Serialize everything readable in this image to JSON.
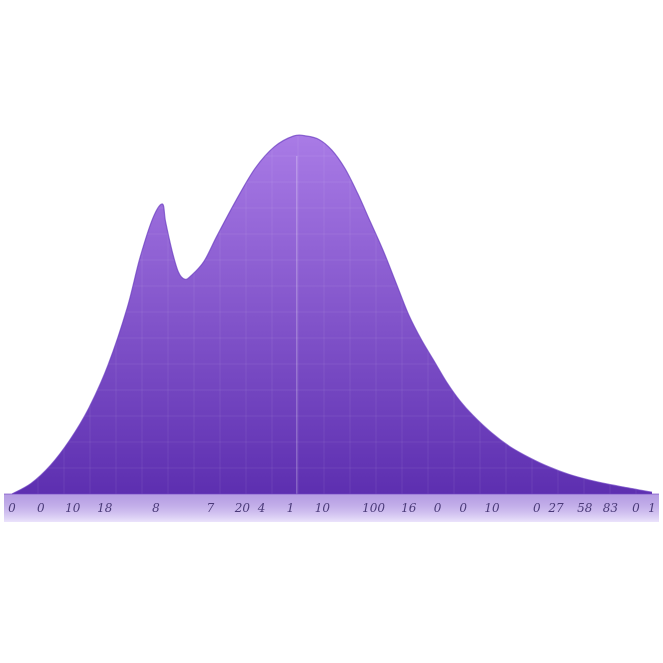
{
  "chart_data": {
    "type": "area",
    "title": "",
    "xlabel": "",
    "ylabel": "",
    "grid": true,
    "legend": "none",
    "colors": {
      "fill_top": "#a97be6",
      "fill_bottom": "#5d2fb0",
      "edge": "#6a3cc0",
      "axis_band": "#c9b5f0",
      "grid": "#ffffff",
      "tick_text": "#4a3a78"
    },
    "x_range": [
      0,
      100
    ],
    "y_range": [
      0,
      1
    ],
    "x": [
      0,
      3,
      6,
      9,
      12,
      15,
      18,
      20,
      22,
      23.5,
      24,
      25,
      26,
      27,
      28,
      30,
      32,
      35,
      38,
      41,
      44,
      46,
      48,
      50,
      52,
      54,
      56,
      58,
      60,
      62,
      64,
      66,
      68,
      70,
      72,
      75,
      78,
      81,
      84,
      87,
      90,
      93,
      96,
      99,
      100
    ],
    "y": [
      0.0,
      0.03,
      0.08,
      0.15,
      0.24,
      0.36,
      0.52,
      0.66,
      0.77,
      0.81,
      0.76,
      0.68,
      0.62,
      0.6,
      0.61,
      0.65,
      0.72,
      0.82,
      0.91,
      0.97,
      1.0,
      1.0,
      0.99,
      0.96,
      0.91,
      0.84,
      0.76,
      0.68,
      0.59,
      0.5,
      0.43,
      0.37,
      0.31,
      0.26,
      0.22,
      0.17,
      0.13,
      0.1,
      0.075,
      0.055,
      0.04,
      0.028,
      0.018,
      0.008,
      0.005
    ],
    "ticks": [
      {
        "x": 0,
        "label": "0"
      },
      {
        "x": 4.5,
        "label": "0"
      },
      {
        "x": 9.5,
        "label": "10"
      },
      {
        "x": 14.5,
        "label": "18"
      },
      {
        "x": 22.5,
        "label": "8"
      },
      {
        "x": 31,
        "label": "7"
      },
      {
        "x": 36,
        "label": "20"
      },
      {
        "x": 39,
        "label": "4"
      },
      {
        "x": 43.5,
        "label": "1"
      },
      {
        "x": 48.5,
        "label": "10"
      },
      {
        "x": 56.5,
        "label": "100"
      },
      {
        "x": 62,
        "label": "16"
      },
      {
        "x": 66.5,
        "label": "0"
      },
      {
        "x": 70.5,
        "label": "0"
      },
      {
        "x": 75,
        "label": "10"
      },
      {
        "x": 82,
        "label": "0"
      },
      {
        "x": 85,
        "label": "27"
      },
      {
        "x": 89.5,
        "label": "58"
      },
      {
        "x": 93.5,
        "label": "83"
      },
      {
        "x": 97.5,
        "label": "0"
      },
      {
        "x": 100,
        "label": "1"
      }
    ]
  }
}
